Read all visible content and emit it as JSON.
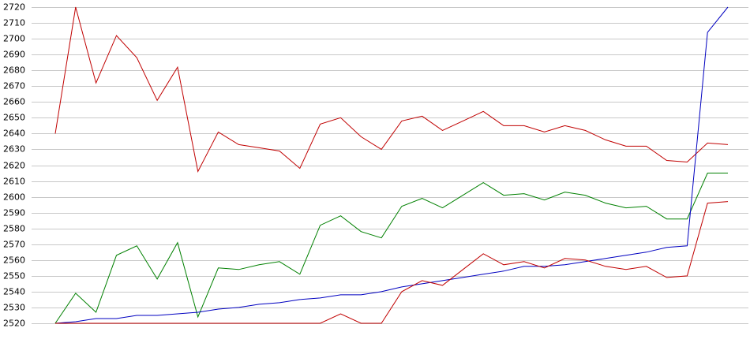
{
  "chart_data": {
    "type": "line",
    "categories": [
      null,
      null,
      null,
      null,
      null,
      null,
      null,
      null,
      null,
      null,
      null,
      null,
      null,
      null,
      null,
      null,
      null,
      null,
      null,
      null,
      null,
      null,
      null,
      null,
      null,
      null,
      null,
      null,
      null,
      null,
      null,
      null,
      null,
      null
    ],
    "series": [
      {
        "color": "#c00000",
        "values": [
          2640,
          2720,
          2672,
          2702,
          2688,
          2661,
          2682,
          2616,
          2641,
          2633,
          2631,
          2629,
          2618,
          2646,
          2650,
          2638,
          2630,
          2648,
          2651,
          2642,
          2648,
          2654,
          2645,
          2645,
          2641,
          2645,
          2642,
          2636,
          2632,
          2632,
          2623,
          2622,
          2634,
          2633
        ]
      },
      {
        "color": "#008000",
        "values": [
          2520,
          2539,
          2527,
          2563,
          2569,
          2548,
          2571,
          2524,
          2555,
          2554,
          2557,
          2559,
          2551,
          2582,
          2588,
          2578,
          2574,
          2594,
          2599,
          2593,
          2601,
          2609,
          2601,
          2602,
          2598,
          2603,
          2601,
          2596,
          2593,
          2594,
          2586,
          2586,
          2615,
          2615
        ]
      },
      {
        "color": "#0000c0",
        "values": [
          2520,
          2521,
          2523,
          2523,
          2525,
          2525,
          2526,
          2527,
          2529,
          2530,
          2532,
          2533,
          2535,
          2536,
          2538,
          2538,
          2540,
          2543,
          2545,
          2547,
          2549,
          2551,
          2553,
          2556,
          2556,
          2557,
          2559,
          2561,
          2563,
          2565,
          2568,
          2569,
          2704,
          2720
        ]
      },
      {
        "color": "#c00000",
        "values": [
          2520,
          2520,
          2520,
          2520,
          2520,
          2520,
          2520,
          2520,
          2520,
          2520,
          2520,
          2520,
          2520,
          2520,
          2526,
          2520,
          2520,
          2540,
          2547,
          2544,
          2554,
          2564,
          2557,
          2559,
          2555,
          2561,
          2560,
          2556,
          2554,
          2556,
          2549,
          2550,
          2596,
          2597
        ]
      }
    ],
    "ylim": [
      2520,
      2720
    ],
    "yticks": [
      2520,
      2530,
      2540,
      2550,
      2560,
      2570,
      2580,
      2590,
      2600,
      2610,
      2620,
      2630,
      2640,
      2650,
      2660,
      2670,
      2680,
      2690,
      2700,
      2710,
      2720
    ],
    "grid": true
  }
}
